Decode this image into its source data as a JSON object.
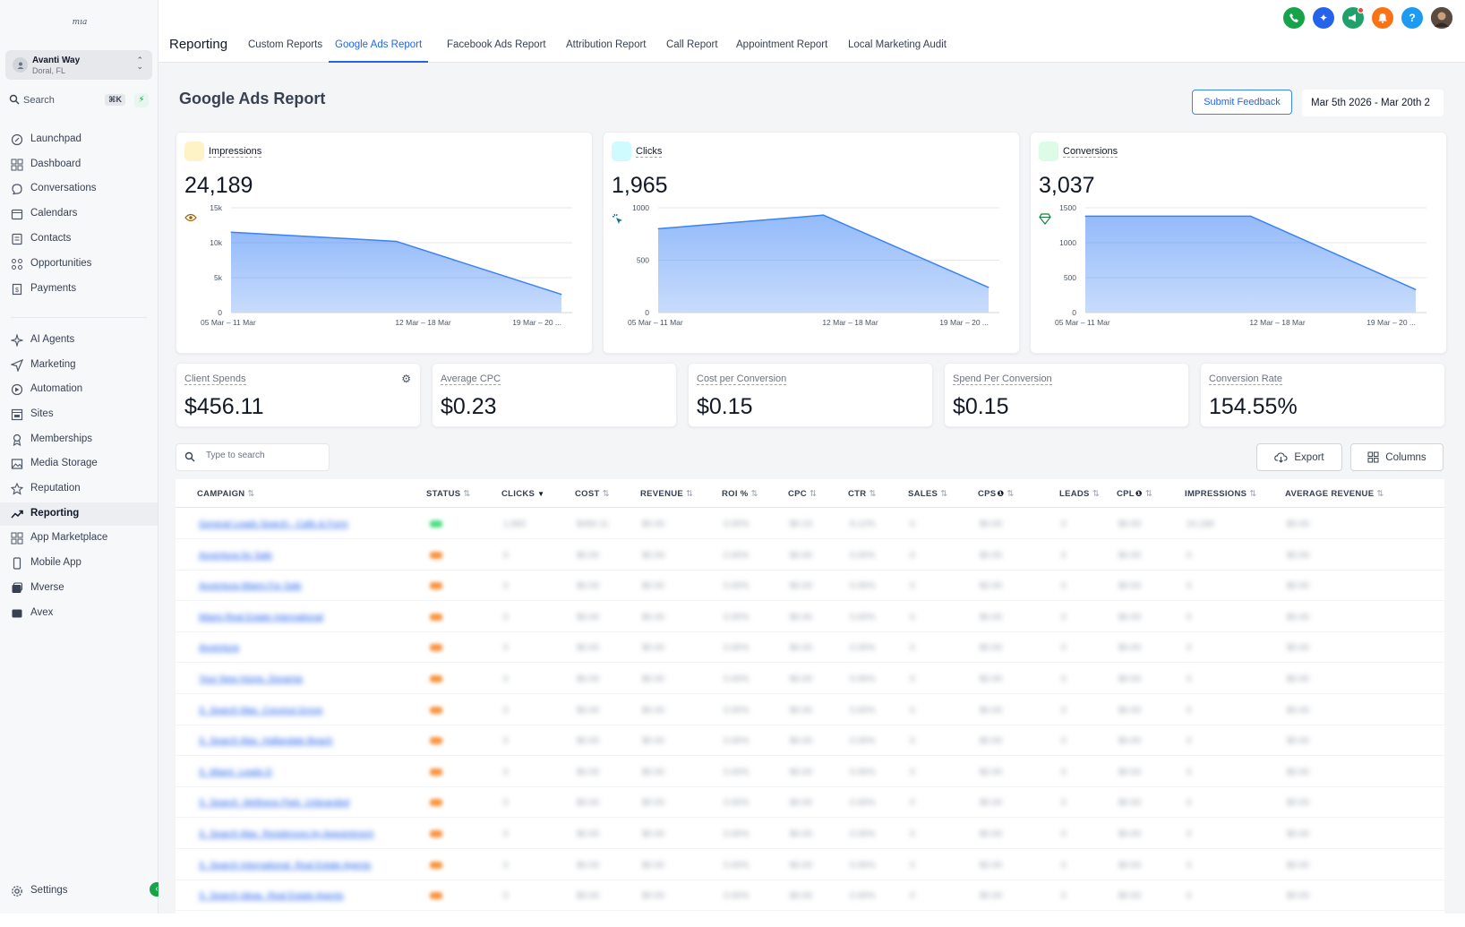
{
  "sidebar": {
    "logo_text": "mıa",
    "account": {
      "name": "Avanti Way",
      "location": "Doral, FL"
    },
    "search": {
      "label": "Search",
      "shortcut": "⌘K"
    },
    "items": [
      {
        "label": "Launchpad",
        "icon": "rocket-icon"
      },
      {
        "label": "Dashboard",
        "icon": "grid-icon"
      },
      {
        "label": "Conversations",
        "icon": "chat-icon"
      },
      {
        "label": "Calendars",
        "icon": "calendar-icon"
      },
      {
        "label": "Contacts",
        "icon": "contacts-icon"
      },
      {
        "label": "Opportunities",
        "icon": "opportunities-icon"
      },
      {
        "label": "Payments",
        "icon": "payments-icon"
      },
      {
        "label": "AI Agents",
        "icon": "sparkle-icon"
      },
      {
        "label": "Marketing",
        "icon": "send-icon"
      },
      {
        "label": "Automation",
        "icon": "automation-icon"
      },
      {
        "label": "Sites",
        "icon": "sites-icon"
      },
      {
        "label": "Memberships",
        "icon": "memberships-icon"
      },
      {
        "label": "Media Storage",
        "icon": "image-icon"
      },
      {
        "label": "Reputation",
        "icon": "star-icon"
      },
      {
        "label": "Reporting",
        "icon": "trend-icon"
      },
      {
        "label": "App Marketplace",
        "icon": "apps-icon"
      },
      {
        "label": "Mobile App",
        "icon": "mobile-icon"
      },
      {
        "label": "Mverse",
        "icon": "mverse-icon"
      },
      {
        "label": "Avex",
        "icon": "avex-icon"
      }
    ],
    "settings_label": "Settings"
  },
  "topbar": {
    "section_title": "Reporting",
    "tabs": [
      "Custom Reports",
      "Google Ads Report",
      "Facebook Ads Report",
      "Attribution Report",
      "Call Report",
      "Appointment Report",
      "Local Marketing Audit"
    ],
    "active_tab": "Google Ads Report",
    "icon_colors": [
      "#16a34a",
      "#2563eb",
      "#22a06b",
      "#f97316",
      "#1d9bf0"
    ]
  },
  "page": {
    "title": "Google Ads Report",
    "feedback_button": "Submit Feedback",
    "date_range": "Mar 5th 2026 - Mar 20th 2"
  },
  "chart_data": [
    {
      "type": "area",
      "title": "Impressions",
      "total": "24,189",
      "categories": [
        "05 Mar – 11 Mar",
        "12 Mar – 18 Mar",
        "19 Mar – 20 ..."
      ],
      "values": [
        11500,
        10200,
        2600
      ],
      "ylim": [
        0,
        15000
      ],
      "yticks": [
        "0",
        "5k",
        "10k",
        "15k"
      ],
      "color": "#3b82f6"
    },
    {
      "type": "area",
      "title": "Clicks",
      "total": "1,965",
      "categories": [
        "05 Mar – 11 Mar",
        "12 Mar – 18 Mar",
        "19 Mar – 20 ..."
      ],
      "values": [
        800,
        930,
        240
      ],
      "ylim": [
        0,
        1000
      ],
      "yticks": [
        "0",
        "500",
        "1000"
      ],
      "color": "#3b82f6"
    },
    {
      "type": "area",
      "title": "Conversions",
      "total": "3,037",
      "categories": [
        "05 Mar – 11 Mar",
        "12 Mar – 18 Mar",
        "19 Mar – 20 ..."
      ],
      "values": [
        1380,
        1380,
        330
      ],
      "ylim": [
        0,
        1500
      ],
      "yticks": [
        "0",
        "500",
        "1000",
        "1500"
      ],
      "color": "#3b82f6"
    }
  ],
  "kpis": [
    {
      "label": "Client Spends",
      "value": "$456.11"
    },
    {
      "label": "Average CPC",
      "value": "$0.23"
    },
    {
      "label": "Cost per Conversion",
      "value": "$0.15"
    },
    {
      "label": "Spend Per Conversion",
      "value": "$0.15"
    },
    {
      "label": "Conversion Rate",
      "value": "154.55%"
    }
  ],
  "table": {
    "search_placeholder": "Type to search",
    "export_label": "Export",
    "columns_label": "Columns",
    "headers": [
      "CAMPAIGN",
      "STATUS",
      "CLICKS",
      "COST",
      "REVENUE",
      "ROI %",
      "CPC",
      "CTR",
      "SALES",
      "CPS",
      "LEADS",
      "CPL",
      "IMPRESSIONS",
      "AVERAGE REVENUE"
    ],
    "rows": [
      {
        "campaign": "General Leads Search - Calls & Form",
        "status": "green",
        "clicks": "1,965",
        "cost": "$456.11",
        "revenue": "$0.00",
        "roi": "0.00%",
        "cpc": "$0.23",
        "ctr": "8.12%",
        "sales": "0",
        "cps": "$0.00",
        "leads": "0",
        "cpl": "$0.00",
        "impressions": "24,189",
        "avg_revenue": "$0.00"
      },
      {
        "campaign": "Avventura for Sale",
        "status": "orange",
        "clicks": "0",
        "cost": "$0.00",
        "revenue": "$0.00",
        "roi": "0.00%",
        "cpc": "$0.00",
        "ctr": "0.00%",
        "sales": "0",
        "cps": "$0.00",
        "leads": "0",
        "cpl": "$0.00",
        "impressions": "0",
        "avg_revenue": "$0.00"
      },
      {
        "campaign": "Avventura Miami For Sale",
        "status": "orange",
        "clicks": "0",
        "cost": "$0.00",
        "revenue": "$0.00",
        "roi": "0.00%",
        "cpc": "$0.00",
        "ctr": "0.00%",
        "sales": "0",
        "cps": "$0.00",
        "leads": "0",
        "cpl": "$0.00",
        "impressions": "0",
        "avg_revenue": "$0.00"
      },
      {
        "campaign": "Miami Real Estate International",
        "status": "orange",
        "clicks": "0",
        "cost": "$0.00",
        "revenue": "$0.00",
        "roi": "0.00%",
        "cpc": "$0.00",
        "ctr": "0.00%",
        "sales": "0",
        "cps": "$0.00",
        "leads": "0",
        "cpl": "$0.00",
        "impressions": "0",
        "avg_revenue": "$0.00"
      },
      {
        "campaign": "Avventura",
        "status": "orange",
        "clicks": "0",
        "cost": "$0.00",
        "revenue": "$0.00",
        "roi": "0.00%",
        "cpc": "$0.00",
        "ctr": "0.00%",
        "sales": "0",
        "cps": "$0.00",
        "leads": "0",
        "cpl": "$0.00",
        "impressions": "0",
        "avg_revenue": "$0.00"
      },
      {
        "campaign": "Your New Home, Doramia",
        "status": "orange",
        "clicks": "0",
        "cost": "$0.00",
        "revenue": "$0.00",
        "roi": "0.00%",
        "cpc": "$0.00",
        "ctr": "0.00%",
        "sales": "0",
        "cps": "$0.00",
        "leads": "0",
        "cpl": "$0.00",
        "impressions": "0",
        "avg_revenue": "$0.00"
      },
      {
        "campaign": "S_Search Max_Coconut Grove",
        "status": "orange",
        "clicks": "0",
        "cost": "$0.00",
        "revenue": "$0.00",
        "roi": "0.00%",
        "cpc": "$0.00",
        "ctr": "0.00%",
        "sales": "0",
        "cps": "$0.00",
        "leads": "0",
        "cpl": "$0.00",
        "impressions": "0",
        "avg_revenue": "$0.00"
      },
      {
        "campaign": "S_Search Max_Hallandale Beach",
        "status": "orange",
        "clicks": "0",
        "cost": "$0.00",
        "revenue": "$0.00",
        "roi": "0.00%",
        "cpc": "$0.00",
        "ctr": "0.00%",
        "sales": "0",
        "cps": "$0.00",
        "leads": "0",
        "cpl": "$0.00",
        "impressions": "0",
        "avg_revenue": "$0.00"
      },
      {
        "campaign": "S_Miami_Leads D",
        "status": "orange",
        "clicks": "0",
        "cost": "$0.00",
        "revenue": "$0.00",
        "roi": "0.00%",
        "cpc": "$0.00",
        "ctr": "0.00%",
        "sales": "0",
        "cps": "$0.00",
        "leads": "0",
        "cpl": "$0.00",
        "impressions": "0",
        "avg_revenue": "$0.00"
      },
      {
        "campaign": "S_Search_Wellness Park_Unbranded",
        "status": "orange",
        "clicks": "0",
        "cost": "$0.00",
        "revenue": "$0.00",
        "roi": "0.00%",
        "cpc": "$0.00",
        "ctr": "0.00%",
        "sales": "0",
        "cps": "$0.00",
        "leads": "0",
        "cpl": "$0.00",
        "impressions": "0",
        "avg_revenue": "$0.00"
      },
      {
        "campaign": "S_Search Max_Residences by Appointment",
        "status": "orange",
        "clicks": "0",
        "cost": "$0.00",
        "revenue": "$0.00",
        "roi": "0.00%",
        "cpc": "$0.00",
        "ctr": "0.00%",
        "sales": "0",
        "cps": "$0.00",
        "leads": "0",
        "cpl": "$0.00",
        "impressions": "0",
        "avg_revenue": "$0.00"
      },
      {
        "campaign": "S_Search International_Real Estate Agents",
        "status": "orange",
        "clicks": "0",
        "cost": "$0.00",
        "revenue": "$0.00",
        "roi": "0.00%",
        "cpc": "$0.00",
        "ctr": "0.00%",
        "sales": "0",
        "cps": "$0.00",
        "leads": "0",
        "cpl": "$0.00",
        "impressions": "0",
        "avg_revenue": "$0.00"
      },
      {
        "campaign": "S_Search Ideas_Real Estate Agents",
        "status": "orange",
        "clicks": "0",
        "cost": "$0.00",
        "revenue": "$0.00",
        "roi": "0.00%",
        "cpc": "$0.00",
        "ctr": "0.00%",
        "sales": "0",
        "cps": "$0.00",
        "leads": "0",
        "cpl": "$0.00",
        "impressions": "0",
        "avg_revenue": "$0.00"
      }
    ]
  },
  "colors": {
    "accent": "#2563eb",
    "status_green": "#4ade80",
    "status_orange": "#fb923c"
  }
}
